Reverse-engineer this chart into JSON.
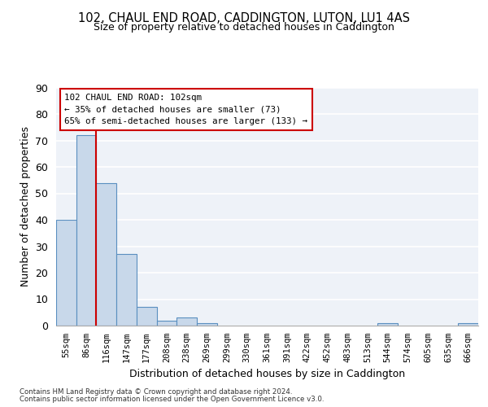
{
  "title1": "102, CHAUL END ROAD, CADDINGTON, LUTON, LU1 4AS",
  "title2": "Size of property relative to detached houses in Caddington",
  "xlabel": "Distribution of detached houses by size in Caddington",
  "ylabel": "Number of detached properties",
  "bar_values": [
    40,
    72,
    54,
    27,
    7,
    2,
    3,
    1,
    0,
    0,
    0,
    0,
    0,
    0,
    0,
    0,
    1,
    0,
    0,
    0,
    1
  ],
  "bin_labels": [
    "55sqm",
    "86sqm",
    "116sqm",
    "147sqm",
    "177sqm",
    "208sqm",
    "238sqm",
    "269sqm",
    "299sqm",
    "330sqm",
    "361sqm",
    "391sqm",
    "422sqm",
    "452sqm",
    "483sqm",
    "513sqm",
    "544sqm",
    "574sqm",
    "605sqm",
    "635sqm",
    "666sqm"
  ],
  "bar_color": "#c8d8ea",
  "bar_edge_color": "#5a8fc0",
  "bar_width": 1.0,
  "ylim": [
    0,
    90
  ],
  "yticks": [
    0,
    10,
    20,
    30,
    40,
    50,
    60,
    70,
    80,
    90
  ],
  "property_label": "102 CHAUL END ROAD: 102sqm",
  "annotation_line1": "← 35% of detached houses are smaller (73)",
  "annotation_line2": "65% of semi-detached houses are larger (133) →",
  "vline_x": 1.5,
  "vline_color": "#cc0000",
  "footnote1": "Contains HM Land Registry data © Crown copyright and database right 2024.",
  "footnote2": "Contains public sector information licensed under the Open Government Licence v3.0.",
  "background_color": "#eef2f8",
  "grid_color": "#ffffff",
  "fig_bg_color": "#ffffff"
}
